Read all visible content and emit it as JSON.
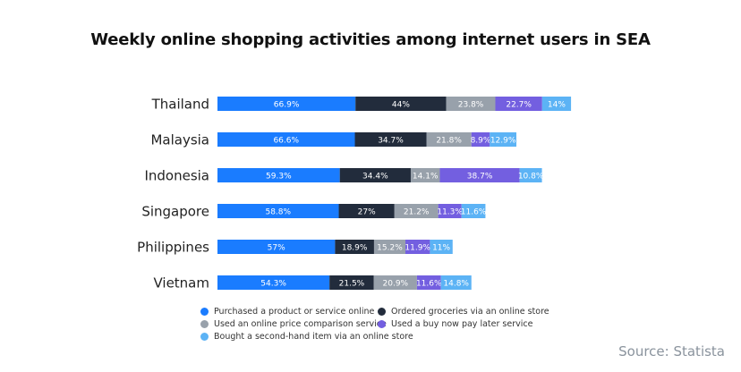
{
  "chart_data": {
    "type": "bar",
    "orientation": "horizontal",
    "stacked": true,
    "title": "Weekly online shopping activities among internet users in SEA",
    "categories": [
      "Thailand",
      "Malaysia",
      "Indonesia",
      "Singapore",
      "Philippines",
      "Vietnam"
    ],
    "series": [
      {
        "name": "Purchased a product or service online",
        "color": "#1a7cff",
        "values": [
          66.9,
          66.6,
          59.3,
          58.8,
          57,
          54.3
        ],
        "labels": [
          "66.9%",
          "66.6%",
          "59.3%",
          "58.8%",
          "57%",
          "54.3%"
        ]
      },
      {
        "name": "Ordered groceries via an online store",
        "color": "#222c3c",
        "values": [
          44,
          34.7,
          34.4,
          27,
          18.9,
          21.5
        ],
        "labels": [
          "44%",
          "34.7%",
          "34.4%",
          "27%",
          "18.9%",
          "21.5%"
        ]
      },
      {
        "name": "Used an online price comparison service",
        "color": "#98a1ab",
        "values": [
          23.8,
          21.8,
          14.1,
          21.2,
          15.2,
          20.9
        ],
        "labels": [
          "23.8%",
          "21.8%",
          "14.1%",
          "21.2%",
          "15.2%",
          "20.9%"
        ]
      },
      {
        "name": "Used a buy now pay later service",
        "color": "#735fe0",
        "values": [
          22.7,
          8.9,
          38.7,
          11.3,
          11.9,
          11.6
        ],
        "labels": [
          "22.7%",
          "8.9%",
          "38.7%",
          "11.3%",
          "11.9%",
          "11.6%"
        ]
      },
      {
        "name": "Bought a second-hand item via an online store",
        "color": "#5cb3f5",
        "values": [
          14,
          12.9,
          10.8,
          11.6,
          11,
          14.8
        ],
        "labels": [
          "14%",
          "12.9%",
          "10.8%",
          "11.6%",
          "11%",
          "14.8%"
        ]
      }
    ],
    "legend_position": "bottom",
    "grid": false
  },
  "source": "Source: Statista"
}
